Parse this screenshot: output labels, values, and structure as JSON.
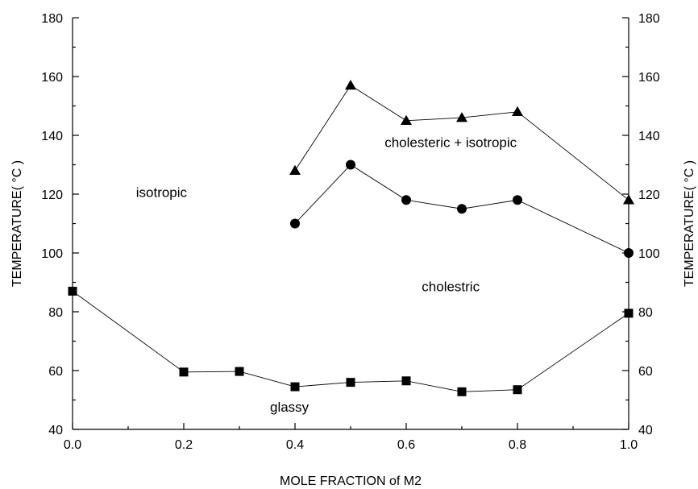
{
  "chart_data": {
    "type": "scatter",
    "xlabel": "MOLE FRACTION of M2",
    "ylabel": "TEMPERATURE(  °C )",
    "ylabel_right": "TEMPERATURE(  °C )",
    "xlim": [
      0.0,
      1.0
    ],
    "ylim": [
      40,
      180
    ],
    "x_ticks": [
      "0.0",
      "0.2",
      "0.4",
      "0.6",
      "0.8",
      "1.0"
    ],
    "y_ticks": [
      "40",
      "60",
      "80",
      "100",
      "120",
      "140",
      "160",
      "180"
    ],
    "grid": false,
    "annotations": [
      {
        "text": "isotropic",
        "x": 0.16,
        "y": 119
      },
      {
        "text": "cholesteric + isotropic",
        "x": 0.68,
        "y": 136
      },
      {
        "text": "cholestric",
        "x": 0.68,
        "y": 87
      },
      {
        "text": "glassy",
        "x": 0.39,
        "y": 46
      }
    ],
    "series": [
      {
        "marker": "triangle",
        "x": [
          0.4,
          0.5,
          0.6,
          0.7,
          0.8,
          1.0
        ],
        "y": [
          128,
          157,
          145,
          146,
          148,
          118
        ]
      },
      {
        "marker": "circle",
        "x": [
          0.4,
          0.5,
          0.6,
          0.7,
          0.8,
          1.0
        ],
        "y": [
          110,
          130,
          118,
          115,
          118,
          100
        ]
      },
      {
        "marker": "square",
        "x": [
          0.0,
          0.2,
          0.3,
          0.4,
          0.5,
          0.6,
          0.7,
          0.8,
          1.0
        ],
        "y": [
          87,
          59.5,
          59.7,
          54.5,
          56,
          56.5,
          52.8,
          53.5,
          79.5
        ]
      }
    ]
  }
}
